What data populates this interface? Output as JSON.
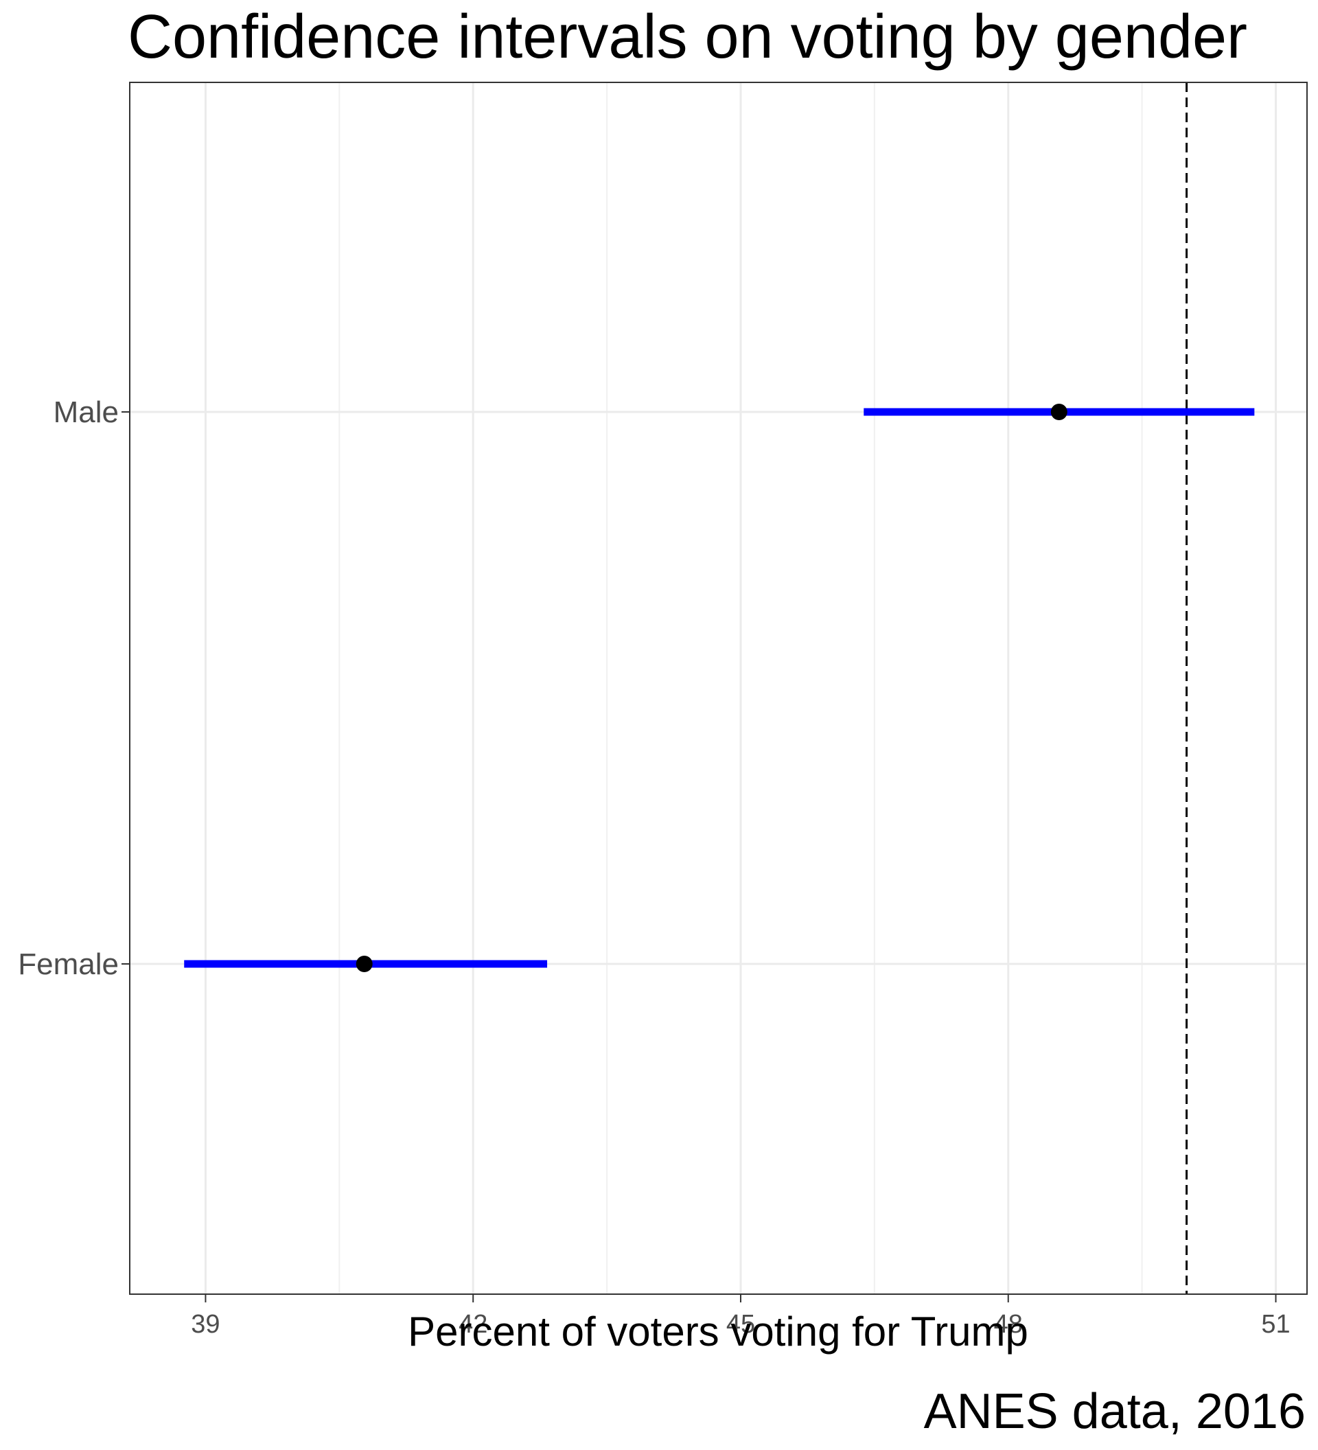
{
  "chart_data": {
    "type": "errorbar",
    "title": "Confidence intervals on voting by gender",
    "caption": "ANES data, 2016",
    "xlabel": "Percent of voters voting for Trump",
    "ylabel": "",
    "xlim": [
      38.15,
      51.35
    ],
    "xticks": [
      39,
      42,
      45,
      48,
      51
    ],
    "xtick_labels": [
      "39",
      "42",
      "45",
      "48",
      "51"
    ],
    "grid": true,
    "reference_line": {
      "x": 50,
      "style": "dashed",
      "color": "#000000"
    },
    "categories": [
      "Male",
      "Female"
    ],
    "points": [
      {
        "category": "Male",
        "estimate": 48.57,
        "lower": 46.38,
        "upper": 50.76
      },
      {
        "category": "Female",
        "estimate": 40.78,
        "lower": 38.76,
        "upper": 42.83
      }
    ],
    "interval_color": "#0000ff",
    "point_color": "#000000"
  }
}
